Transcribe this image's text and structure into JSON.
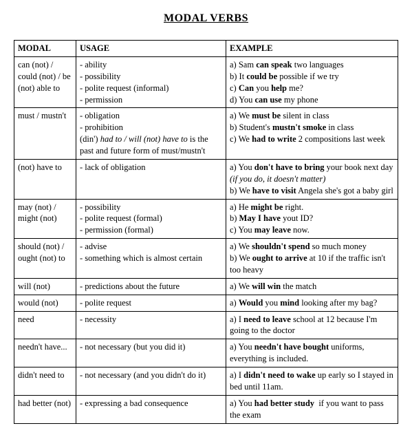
{
  "title": "MODAL VERBS",
  "headers": {
    "c1": "MODAL",
    "c2": "USAGE",
    "c3": "EXAMPLE"
  },
  "rows": [
    {
      "modal": "can (not) / could (not) / be (not) able to",
      "usage": [
        {
          "t": "- ability"
        },
        {
          "t": "- possibility"
        },
        {
          "t": "- polite request (informal)"
        },
        {
          "t": "- permission"
        }
      ],
      "example": [
        {
          "h": "a) Sam <b>can speak</b> two languages"
        },
        {
          "h": "b) It <b>could be</b> possible if we try"
        },
        {
          "h": "c) <b>Can</b> you <b>help</b> me?"
        },
        {
          "h": "d) You <b>can use</b> my phone"
        }
      ]
    },
    {
      "modal": "must / mustn't",
      "usage": [
        {
          "t": "- obligation"
        },
        {
          "t": "- prohibition"
        },
        {
          "h": "(din') <i>had to / will (not) have to</i> is the past and future form of must/mustn't"
        }
      ],
      "example": [
        {
          "h": "a) We <b>must be</b> silent in class"
        },
        {
          "h": "b) Student's <b>mustn't smoke</b> in class"
        },
        {
          "h": "c) We <b>had to write</b> 2 compositions last week"
        }
      ]
    },
    {
      "modal": "(not) have to",
      "usage": [
        {
          "t": "- lack of obligation"
        }
      ],
      "example": [
        {
          "h": "a) You <b>don't have to bring</b> your book next day <i>(if you do, it doesn't matter)</i>"
        },
        {
          "h": "b) We <b>have to visit</b> Angela she's got a baby girl"
        }
      ]
    },
    {
      "modal": "may (not) / might (not)",
      "usage": [
        {
          "t": "- possibility"
        },
        {
          "t": "- polite request (formal)"
        },
        {
          "t": "- permission (formal)"
        }
      ],
      "example": [
        {
          "h": "a) He <b>might be</b> right."
        },
        {
          "h": "b) <b>May I have</b> yout ID?"
        },
        {
          "h": "c) You <b>may leave</b> now."
        }
      ]
    },
    {
      "modal": "should (not) / ought (not) to",
      "usage": [
        {
          "t": "- advise"
        },
        {
          "t": "- something which is almost certain"
        }
      ],
      "example": [
        {
          "h": "a) We <b>shouldn't spend</b> so much money"
        },
        {
          "h": "b) We <b>ought to arrive</b> at 10 if the traffic isn't too heavy"
        }
      ]
    },
    {
      "modal": "will (not)",
      "usage": [
        {
          "t": "- predictions about the future"
        }
      ],
      "example": [
        {
          "h": "a) We <b>will win</b> the match"
        }
      ]
    },
    {
      "modal": "would (not)",
      "usage": [
        {
          "t": "- polite request"
        }
      ],
      "example": [
        {
          "h": "a) <b>Would</b> you <b>mind</b> looking after my bag?"
        }
      ]
    },
    {
      "modal": "need",
      "usage": [
        {
          "t": "- necessity"
        }
      ],
      "example": [
        {
          "h": "a) I <b>need to leave</b> school at 12 because I'm going to the doctor"
        }
      ]
    },
    {
      "modal": "needn't have...",
      "usage": [
        {
          "t": "- not necessary (but you did it)"
        }
      ],
      "example": [
        {
          "h": "a) You <b>needn't have bought</b> uniforms, everything is included."
        }
      ]
    },
    {
      "modal": "didn't need to",
      "usage": [
        {
          "t": "- not necessary (and you didn't do it)"
        }
      ],
      "example": [
        {
          "h": "a) I <b>didn't need to wake</b> up early so I stayed in bed until 11am."
        }
      ]
    },
    {
      "modal": "had better (not)",
      "usage": [
        {
          "t": "- expressing a bad consequence"
        }
      ],
      "example": [
        {
          "h": "a) You <b>had better study</b> &nbsp;if you want to pass the exam"
        }
      ]
    }
  ]
}
